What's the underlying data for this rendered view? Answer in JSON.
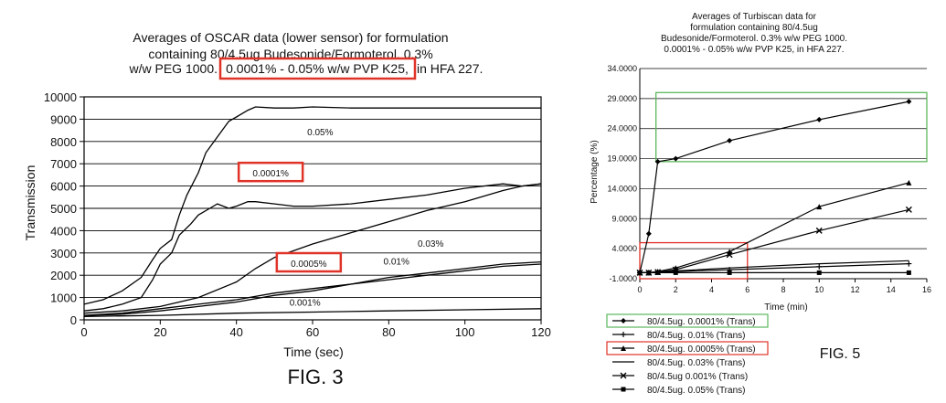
{
  "chart_data": [
    {
      "type": "line",
      "title_lines": [
        "Averages of OSCAR data (lower sensor) for  formulation",
        "containing 80/4.5ug Budesonide/Formoterol.  0.3%"
      ],
      "title_line3": {
        "prefix": "w/w PEG 1000.",
        "highlight": "0.0001% - 0.05% w/w PVP K25,",
        "suffix": " in HFA 227."
      },
      "xlabel": "Time (sec)",
      "ylabel": "Transmission",
      "xlim": [
        0,
        120
      ],
      "ylim": [
        0,
        10000
      ],
      "xticks": [
        "0",
        "20",
        "40",
        "60",
        "80",
        "100",
        "120"
      ],
      "yticks": [
        "0",
        "1000",
        "2000",
        "3000",
        "4000",
        "5000",
        "6000",
        "7000",
        "8000",
        "9000",
        "10000"
      ],
      "grid": "horizontal",
      "fig_label": "FIG. 3",
      "series": [
        {
          "name": "0.05%",
          "x": [
            0,
            5,
            10,
            15,
            18,
            20,
            23,
            25,
            27,
            30,
            32,
            35,
            38,
            40,
            43,
            45,
            50,
            55,
            60,
            70,
            80,
            100,
            120
          ],
          "y": [
            700,
            900,
            1300,
            1900,
            2700,
            3200,
            3600,
            4700,
            5600,
            6600,
            7500,
            8200,
            8900,
            9100,
            9400,
            9550,
            9500,
            9500,
            9550,
            9500,
            9500,
            9500,
            9500
          ]
        },
        {
          "name": "0.0001%",
          "x": [
            0,
            5,
            10,
            15,
            18,
            20,
            23,
            25,
            28,
            30,
            33,
            35,
            38,
            40,
            43,
            45,
            50,
            55,
            60,
            70,
            80,
            90,
            100,
            110,
            115,
            120
          ],
          "y": [
            400,
            500,
            700,
            1000,
            1800,
            2500,
            3000,
            3800,
            4300,
            4700,
            5000,
            5200,
            5000,
            5100,
            5300,
            5300,
            5200,
            5100,
            5100,
            5200,
            5400,
            5600,
            5900,
            6100,
            6000,
            6100
          ]
        },
        {
          "name": "0.03%",
          "x": [
            0,
            10,
            20,
            30,
            40,
            45,
            50,
            55,
            60,
            70,
            80,
            90,
            100,
            110,
            115,
            120
          ],
          "y": [
            300,
            400,
            600,
            1000,
            1700,
            2300,
            2800,
            3100,
            3400,
            3900,
            4400,
            4900,
            5300,
            5800,
            6000,
            6100
          ]
        },
        {
          "name": "0.0005%",
          "x": [
            0,
            10,
            20,
            30,
            40,
            50,
            60,
            70,
            80,
            90,
            100,
            110,
            120
          ],
          "y": [
            200,
            300,
            500,
            700,
            900,
            1200,
            1400,
            1600,
            1800,
            2000,
            2200,
            2400,
            2500
          ]
        },
        {
          "name": "0.01%",
          "x": [
            0,
            10,
            20,
            30,
            40,
            50,
            60,
            70,
            80,
            90,
            100,
            110,
            120
          ],
          "y": [
            200,
            250,
            400,
            600,
            800,
            1100,
            1300,
            1600,
            1900,
            2100,
            2300,
            2500,
            2600
          ]
        },
        {
          "name": "0.001%",
          "x": [
            0,
            20,
            40,
            60,
            80,
            100,
            120
          ],
          "y": [
            150,
            200,
            300,
            350,
            400,
            450,
            500
          ]
        }
      ],
      "annotations": [
        {
          "text": "0.05%",
          "x": 62,
          "y": 8400
        },
        {
          "text": "0.0001%",
          "x": 49,
          "y": 6550,
          "boxed": true
        },
        {
          "text": "0.03%",
          "x": 91,
          "y": 3400
        },
        {
          "text": "0.0005%",
          "x": 59,
          "y": 2500,
          "boxed": true
        },
        {
          "text": "0.01%",
          "x": 82,
          "y": 2600
        },
        {
          "text": "0.001%",
          "x": 58,
          "y": 750
        }
      ],
      "highlight_color": "#e03328"
    },
    {
      "type": "line",
      "title_lines": [
        "Averages of Turbiscan data for",
        "formulation containing 80/4.5ug",
        "Budesonide/Formoterol.  0.3% w/w PEG 1000.",
        "0.0001% - 0.05% w/w PVP K25, in HFA 227."
      ],
      "xlabel": "Time (min)",
      "ylabel": "Percentage (%)",
      "xlim": [
        0,
        16
      ],
      "ylim": [
        -1,
        34
      ],
      "xticks": [
        "0",
        "2",
        "4",
        "6",
        "8",
        "10",
        "12",
        "14",
        "16"
      ],
      "yticks": [
        "-1.0000",
        "4.0000",
        "9.0000",
        "14.0000",
        "19.0000",
        "24.0000",
        "29.0000",
        "34.0000"
      ],
      "grid": "horizontal",
      "fig_label": "FIG. 5",
      "series": [
        {
          "name": "80/4.5ug. 0.0001% (Trans)",
          "marker": "diamond",
          "x": [
            0,
            0.5,
            1,
            2,
            5,
            10,
            15
          ],
          "y": [
            0,
            6.5,
            18.5,
            19,
            22,
            25.5,
            28.5
          ]
        },
        {
          "name": "80/4.5ug. 0.01% (Trans)",
          "marker": "plus",
          "x": [
            0,
            0.5,
            1,
            2,
            5,
            10,
            15
          ],
          "y": [
            0,
            0,
            0.1,
            0.2,
            0.5,
            1,
            1.5
          ]
        },
        {
          "name": "80/4.5ug. 0.0005% (Trans)",
          "marker": "triangle",
          "x": [
            0,
            0.5,
            1,
            2,
            5,
            10,
            15
          ],
          "y": [
            0,
            0,
            0.2,
            0.8,
            3.5,
            11,
            15
          ]
        },
        {
          "name": "80/4.5ug. 0.03% (Trans)",
          "marker": "none",
          "x": [
            0,
            0.5,
            1,
            2,
            5,
            10,
            15
          ],
          "y": [
            0,
            0,
            0.1,
            0.3,
            0.8,
            1.5,
            2
          ]
        },
        {
          "name": "80/4.5ug 0.001% (Trans)",
          "marker": "x",
          "x": [
            0,
            0.5,
            1,
            2,
            5,
            10,
            15
          ],
          "y": [
            0,
            0,
            0.1,
            0.5,
            3,
            7,
            10.5
          ]
        },
        {
          "name": "80/4.5ug. 0.05% (Trans)",
          "marker": "square",
          "x": [
            0,
            0.5,
            1,
            2,
            5,
            10,
            15
          ],
          "y": [
            0,
            0,
            0,
            0,
            0,
            0,
            0
          ]
        }
      ],
      "legend_boxes": [
        {
          "series": 0,
          "color": "#5cb85c"
        },
        {
          "series": 2,
          "color": "#e03328"
        }
      ],
      "highlight_rects": [
        {
          "x0": 0.9,
          "x1": 16,
          "y0": 18.5,
          "y1": 30,
          "color": "#5cb85c"
        },
        {
          "x0": 0,
          "x1": 6,
          "y0": -1,
          "y1": 5,
          "color": "#e03328"
        }
      ]
    }
  ]
}
